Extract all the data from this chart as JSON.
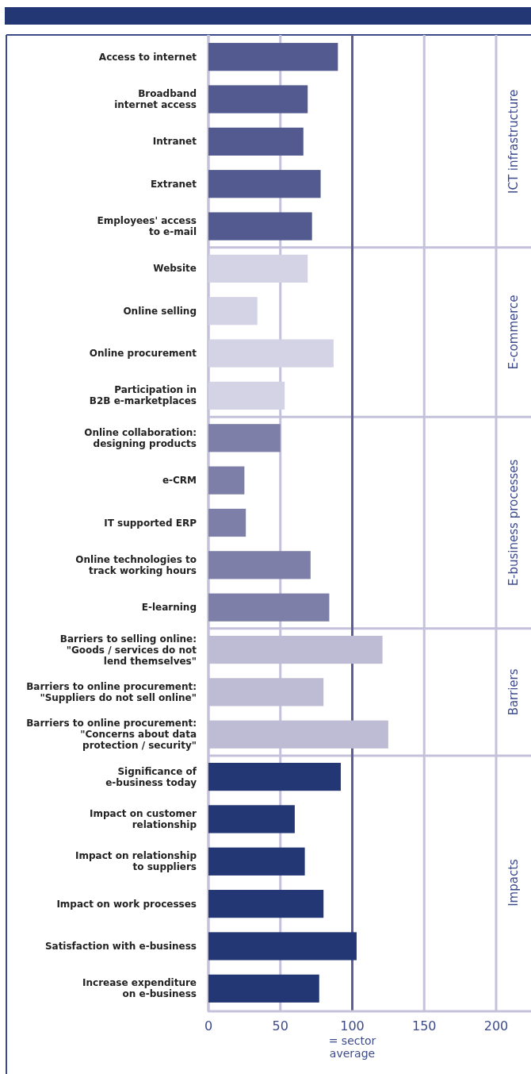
{
  "chart_data": {
    "type": "bar",
    "orientation": "horizontal",
    "categories": [
      "Access to internet",
      "Broadband\ninternet access",
      "Intranet",
      "Extranet",
      "Employees' access\nto e-mail",
      "Website",
      "Online selling",
      "Online procurement",
      "Participation in\nB2B e-marketplaces",
      "Online collaboration:\ndesigning products",
      "e-CRM",
      "IT supported ERP",
      "Online technologies to\ntrack working hours",
      "E-learning",
      "Barriers to selling online:\n\"Goods / services do not\nlend themselves\"",
      "Barriers to online procurement:\n\"Suppliers do not sell online\"",
      "Barriers to online procurement:\n\"Concerns about data\nprotection / security\"",
      "Significance of\ne-business today",
      "Impact on customer\nrelationship",
      "Impact on relationship\nto suppliers",
      "Impact on work processes",
      "Satisfaction with e-business",
      "Increase expenditure\non e-business"
    ],
    "series": [
      {
        "name": "ICT infrastructure",
        "color": "#535a90",
        "values": [
          90,
          69,
          66,
          78,
          72,
          null,
          null,
          null,
          null,
          null,
          null,
          null,
          null,
          null,
          null,
          null,
          null,
          null,
          null,
          null,
          null,
          null,
          null
        ]
      },
      {
        "name": "E-commerce",
        "color": "#d4d3e5",
        "values": [
          null,
          null,
          null,
          null,
          null,
          69,
          34,
          87,
          53,
          null,
          null,
          null,
          null,
          null,
          null,
          null,
          null,
          null,
          null,
          null,
          null,
          null,
          null
        ]
      },
      {
        "name": "E-business processes",
        "color": "#7d7fa8",
        "values": [
          null,
          null,
          null,
          null,
          null,
          null,
          null,
          null,
          null,
          50,
          25,
          26,
          71,
          84,
          null,
          null,
          null,
          null,
          null,
          null,
          null,
          null,
          null
        ]
      },
      {
        "name": "Barriers",
        "color": "#bdbcd4",
        "values": [
          null,
          null,
          null,
          null,
          null,
          null,
          null,
          null,
          null,
          null,
          null,
          null,
          null,
          null,
          121,
          80,
          125,
          null,
          null,
          null,
          null,
          null,
          null
        ]
      },
      {
        "name": "Impacts",
        "color": "#243775",
        "values": [
          null,
          null,
          null,
          null,
          null,
          null,
          null,
          null,
          null,
          null,
          null,
          null,
          null,
          null,
          null,
          null,
          null,
          92,
          60,
          67,
          80,
          103,
          77
        ]
      }
    ],
    "xlim": [
      0,
      200
    ],
    "xticks": [
      0,
      50,
      100,
      150,
      200
    ],
    "grid": "x",
    "ref_lines": [
      {
        "axis": "x",
        "value": 100,
        "label": "= sector average",
        "color": "#5b5e97"
      }
    ]
  }
}
